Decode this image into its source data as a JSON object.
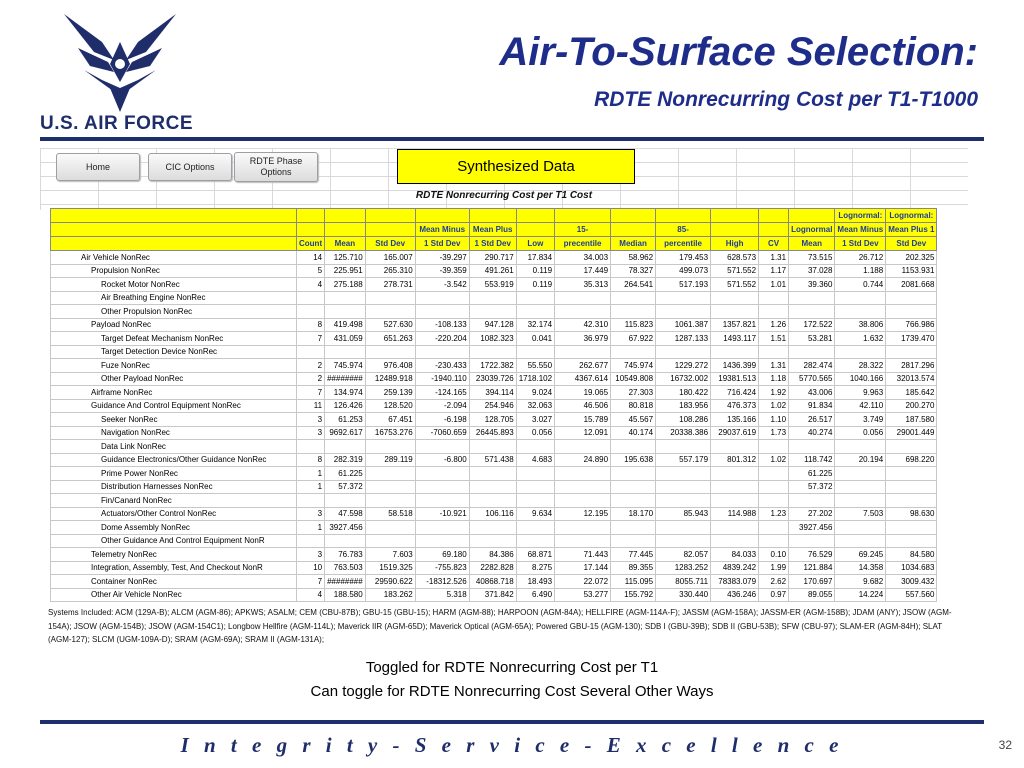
{
  "logo": {
    "text": "U.S. AIR FORCE"
  },
  "title": {
    "main": "Air-To-Surface Selection:",
    "sub": "RDTE Nonrecurring Cost per T1-T1000"
  },
  "sheet": {
    "buttons": {
      "home": "Home",
      "cic": "CIC Options",
      "phase": "RDTE Phase Options"
    },
    "synth_label": "Synthesized Data",
    "table_title": "RDTE Nonrecurring Cost per T1 Cost",
    "headers_top": [
      "",
      "",
      "",
      "",
      "",
      "",
      "",
      "",
      "",
      "",
      "",
      "",
      "",
      "Lognormal:",
      "Lognormal:"
    ],
    "headers_mid": [
      "",
      "",
      "",
      "",
      "Mean Minus",
      "Mean Plus",
      "",
      "15-",
      "",
      "85-",
      "",
      "",
      "Lognormal",
      "Mean Minus",
      "Mean Plus 1"
    ],
    "headers_bot": [
      "",
      "Count",
      "Mean",
      "Std Dev",
      "1 Std Dev",
      "1 Std Dev",
      "Low",
      "precentile",
      "Median",
      "percentile",
      "High",
      "CV",
      "Mean",
      "1 Std Dev",
      "Std Dev"
    ],
    "rows": [
      [
        "Air Vehicle NonRec",
        "14",
        "125.710",
        "165.007",
        "-39.297",
        "290.717",
        "17.834",
        "34.003",
        "58.962",
        "179.453",
        "628.573",
        "1.31",
        "73.515",
        "26.712",
        "202.325"
      ],
      [
        "Propulsion NonRec",
        "5",
        "225.951",
        "265.310",
        "-39.359",
        "491.261",
        "0.119",
        "17.449",
        "78.327",
        "499.073",
        "571.552",
        "1.17",
        "37.028",
        "1.188",
        "1153.931"
      ],
      [
        "Rocket Motor NonRec",
        "4",
        "275.188",
        "278.731",
        "-3.542",
        "553.919",
        "0.119",
        "35.313",
        "264.541",
        "517.193",
        "571.552",
        "1.01",
        "39.360",
        "0.744",
        "2081.668"
      ],
      [
        "Air Breathing Engine NonRec",
        "",
        "",
        "",
        "",
        "",
        "",
        "",
        "",
        "",
        "",
        "",
        "",
        "",
        ""
      ],
      [
        "Other Propulsion NonRec",
        "",
        "",
        "",
        "",
        "",
        "",
        "",
        "",
        "",
        "",
        "",
        "",
        "",
        ""
      ],
      [
        "Payload NonRec",
        "8",
        "419.498",
        "527.630",
        "-108.133",
        "947.128",
        "32.174",
        "42.310",
        "115.823",
        "1061.387",
        "1357.821",
        "1.26",
        "172.522",
        "38.806",
        "766.986"
      ],
      [
        "Target Defeat Mechanism NonRec",
        "7",
        "431.059",
        "651.263",
        "-220.204",
        "1082.323",
        "0.041",
        "36.979",
        "67.922",
        "1287.133",
        "1493.117",
        "1.51",
        "53.281",
        "1.632",
        "1739.470"
      ],
      [
        "Target Detection Device NonRec",
        "",
        "",
        "",
        "",
        "",
        "",
        "",
        "",
        "",
        "",
        "",
        "",
        "",
        ""
      ],
      [
        "Fuze NonRec",
        "2",
        "745.974",
        "976.408",
        "-230.433",
        "1722.382",
        "55.550",
        "262.677",
        "745.974",
        "1229.272",
        "1436.399",
        "1.31",
        "282.474",
        "28.322",
        "2817.296"
      ],
      [
        "Other Payload NonRec",
        "2",
        "########",
        "12489.918",
        "-1940.110",
        "23039.726",
        "1718.102",
        "4367.614",
        "10549.808",
        "16732.002",
        "19381.513",
        "1.18",
        "5770.565",
        "1040.166",
        "32013.574"
      ],
      [
        "Airframe NonRec",
        "7",
        "134.974",
        "259.139",
        "-124.165",
        "394.114",
        "9.024",
        "19.065",
        "27.303",
        "180.422",
        "716.424",
        "1.92",
        "43.006",
        "9.963",
        "185.642"
      ],
      [
        "Guidance And Control Equipment NonRec",
        "11",
        "126.426",
        "128.520",
        "-2.094",
        "254.946",
        "32.063",
        "46.506",
        "80.818",
        "183.956",
        "476.373",
        "1.02",
        "91.834",
        "42.110",
        "200.270"
      ],
      [
        "Seeker NonRec",
        "3",
        "61.253",
        "67.451",
        "-6.198",
        "128.705",
        "3.027",
        "15.789",
        "45.567",
        "108.286",
        "135.166",
        "1.10",
        "26.517",
        "3.749",
        "187.580"
      ],
      [
        "Navigation NonRec",
        "3",
        "9692.617",
        "16753.276",
        "-7060.659",
        "26445.893",
        "0.056",
        "12.091",
        "40.174",
        "20338.386",
        "29037.619",
        "1.73",
        "40.274",
        "0.056",
        "29001.449"
      ],
      [
        "Data Link NonRec",
        "",
        "",
        "",
        "",
        "",
        "",
        "",
        "",
        "",
        "",
        "",
        "",
        "",
        ""
      ],
      [
        "Guidance Electronics/Other Guidance NonRec",
        "8",
        "282.319",
        "289.119",
        "-6.800",
        "571.438",
        "4.683",
        "24.890",
        "195.638",
        "557.179",
        "801.312",
        "1.02",
        "118.742",
        "20.194",
        "698.220"
      ],
      [
        "Prime Power NonRec",
        "1",
        "61.225",
        "",
        "",
        "",
        "",
        "",
        "",
        "",
        "",
        "",
        "61.225",
        "",
        ""
      ],
      [
        "Distribution Harnesses NonRec",
        "1",
        "57.372",
        "",
        "",
        "",
        "",
        "",
        "",
        "",
        "",
        "",
        "57.372",
        "",
        ""
      ],
      [
        "Fin/Canard NonRec",
        "",
        "",
        "",
        "",
        "",
        "",
        "",
        "",
        "",
        "",
        "",
        "",
        "",
        ""
      ],
      [
        "Actuators/Other Control NonRec",
        "3",
        "47.598",
        "58.518",
        "-10.921",
        "106.116",
        "9.634",
        "12.195",
        "18.170",
        "85.943",
        "114.988",
        "1.23",
        "27.202",
        "7.503",
        "98.630"
      ],
      [
        "Dome Assembly NonRec",
        "1",
        "3927.456",
        "",
        "",
        "",
        "",
        "",
        "",
        "",
        "",
        "",
        "3927.456",
        "",
        ""
      ],
      [
        "Other Guidance And Control Equipment NonR",
        "",
        "",
        "",
        "",
        "",
        "",
        "",
        "",
        "",
        "",
        "",
        "",
        "",
        ""
      ],
      [
        "Telemetry NonRec",
        "3",
        "76.783",
        "7.603",
        "69.180",
        "84.386",
        "68.871",
        "71.443",
        "77.445",
        "82.057",
        "84.033",
        "0.10",
        "76.529",
        "69.245",
        "84.580"
      ],
      [
        "Integration, Assembly, Test, And Checkout NonR",
        "10",
        "763.503",
        "1519.325",
        "-755.823",
        "2282.828",
        "8.275",
        "17.144",
        "89.355",
        "1283.252",
        "4839.242",
        "1.99",
        "121.884",
        "14.358",
        "1034.683"
      ],
      [
        "Container NonRec",
        "7",
        "########",
        "29590.622",
        "-18312.526",
        "40868.718",
        "18.493",
        "22.072",
        "115.095",
        "8055.711",
        "78383.079",
        "2.62",
        "170.697",
        "9.682",
        "3009.432"
      ],
      [
        "Other Air Vehicle NonRec",
        "4",
        "188.580",
        "183.262",
        "5.318",
        "371.842",
        "6.490",
        "53.277",
        "155.792",
        "330.440",
        "436.246",
        "0.97",
        "89.055",
        "14.224",
        "557.560"
      ]
    ],
    "indents": [
      1,
      2,
      3,
      3,
      3,
      2,
      3,
      3,
      3,
      3,
      2,
      2,
      3,
      3,
      3,
      3,
      3,
      3,
      3,
      3,
      3,
      3,
      2,
      2,
      2,
      2
    ],
    "footnote": "Systems Included: ACM (129A-B); ALCM (AGM-86); APKWS; ASALM; CEM (CBU-87B); GBU-15 (GBU-15); HARM (AGM-88); HARPOON (AGM-84A); HELLFIRE (AGM-114A-F); JASSM (AGM-158A); JASSM-ER (AGM-158B); JDAM (ANY); JSOW (AGM-154A); JSOW (AGM-154B); JSOW (AGM-154C1); Longbow Hellfire (AGM-114L); Maverick IIR (AGM-65D); Maverick Optical (AGM-65A); Powered GBU-15 (AGM-130); SDB I (GBU-39B); SDB II (GBU-53B); SFW (CBU-97); SLAM-ER (AGM-84H); SLAT (AGM-127); SLCM (UGM-109A-D); SRAM (AGM-69A); SRAM II (AGM-131A);"
  },
  "captions": {
    "line1": "Toggled for RDTE Nonrecurring Cost per T1",
    "line2": "Can toggle for RDTE Nonrecurring Cost Several Other Ways"
  },
  "footer": {
    "motto": "I n t e g r i t y  -  S e r v i c e  -  E x c e l l e n c e",
    "page": "32"
  },
  "colors": {
    "brand": "#1e2d8a",
    "header_fill": "#ffff00",
    "header_text": "#1f3b9c"
  }
}
